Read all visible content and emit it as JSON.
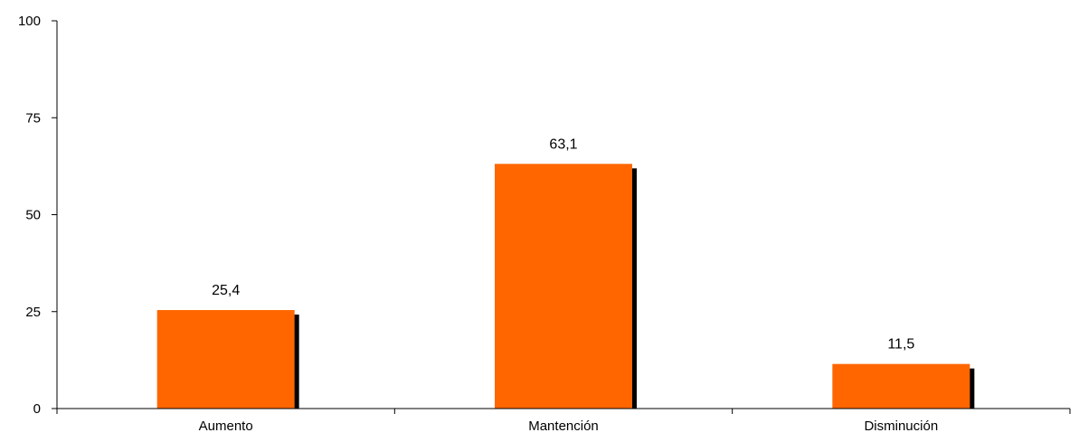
{
  "chart_data": {
    "type": "bar",
    "title": "",
    "xlabel": "",
    "ylabel": "",
    "categories": [
      "Aumento",
      "Mantención",
      "Disminución"
    ],
    "values": [
      25.4,
      63.1,
      11.5
    ],
    "value_labels": [
      "25,4",
      "63,1",
      "11,5"
    ],
    "ylim": [
      0,
      100
    ],
    "yticks": [
      0,
      25,
      50,
      75,
      100
    ],
    "ytick_labels": [
      "0",
      "25",
      "50",
      "75",
      "100"
    ],
    "grid": false,
    "legend": "none",
    "bar_color": "#FF6600",
    "shadow_color": "#000000"
  }
}
